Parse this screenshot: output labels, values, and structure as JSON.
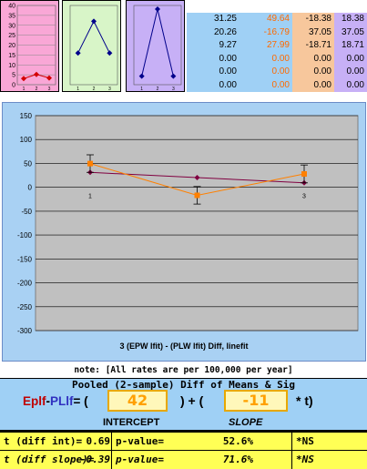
{
  "mini_charts": [
    {
      "name": "mini-chart-1",
      "y_ticks": [
        "40",
        "35",
        "30",
        "25",
        "20",
        "15",
        "10",
        "5",
        "0"
      ],
      "ylim": [
        0,
        40
      ],
      "values": [
        3.1,
        5.2,
        3.4
      ],
      "color": "#d40000",
      "x_ticks": [
        "1",
        "2",
        "3"
      ]
    },
    {
      "name": "mini-chart-2",
      "values": [
        16,
        32,
        16
      ],
      "ylim": [
        0,
        40
      ],
      "color": "#00008b",
      "x_ticks": [
        "1",
        "2",
        "3"
      ]
    },
    {
      "name": "mini-chart-3",
      "values": [
        -18,
        37,
        -18
      ],
      "ylim": [
        -25,
        40
      ],
      "color": "#00008b",
      "x_ticks": [
        "1",
        "2",
        "3"
      ]
    }
  ],
  "table": [
    [
      "31.25",
      "49.64",
      "-18.38",
      "18.38"
    ],
    [
      "20.26",
      "-16.79",
      "37.05",
      "37.05"
    ],
    [
      "9.27",
      "27.99",
      "-18.71",
      "18.71"
    ],
    [
      "0.00",
      "0.00",
      "0.00",
      "0.00"
    ],
    [
      "0.00",
      "0.00",
      "0.00",
      "0.00"
    ],
    [
      "0.00",
      "0.00",
      "0.00",
      "0.00"
    ]
  ],
  "chart_data": {
    "type": "line",
    "x": [
      1,
      2,
      3
    ],
    "x_tick_labels": [
      "1",
      "",
      "3"
    ],
    "y_ticks": [
      150,
      100,
      50,
      0,
      -50,
      -100,
      -150,
      -200,
      -250,
      -300
    ],
    "ylim": [
      -300,
      150
    ],
    "series": [
      {
        "values": [
          31.25,
          20.26,
          9.27
        ],
        "color": "#800040",
        "marker": "diamond"
      },
      {
        "values": [
          49.64,
          -16.79,
          27.99
        ],
        "color": "#ff8000",
        "marker": "square",
        "error_bars": [
          18.38,
          18.38,
          18.71
        ]
      }
    ],
    "title": "3 (EPW lfit) - (PLW lfit) Diff, linefit",
    "grid": true
  },
  "note": "note: [All rates are per 100,000 per year]",
  "formula": {
    "title": "Pooled (2-sample) Diff of Means & Sig",
    "lhs_a": "Eplf",
    "lhs_dash": "-",
    "lhs_b": "PLlf",
    "equals_paren": "= (",
    "intercept": "42",
    "plus": ") + (",
    "slope": "-11",
    "close": "* t)",
    "intercept_label": "INTERCEPT",
    "slope_label": "SLOPE"
  },
  "stats": [
    {
      "label": "t (diff int)=",
      "value": "0.69",
      "p_label": "p-value=",
      "p_value": "52.6%",
      "sig": "*NS"
    },
    {
      "label": "t (diff slope)=",
      "value": "-0.39",
      "p_label": "p-value=",
      "p_value": "71.6%",
      "sig": "*NS"
    }
  ]
}
